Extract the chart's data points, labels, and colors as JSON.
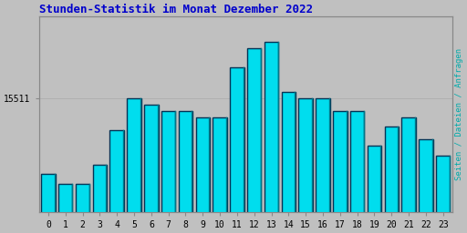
{
  "title": "Stunden-Statistik im Monat Dezember 2022",
  "ylabel_right": "Seiten / Dateien / Anfragen",
  "ytick_label": "15511",
  "hours": [
    0,
    1,
    2,
    3,
    4,
    5,
    6,
    7,
    8,
    9,
    10,
    11,
    12,
    13,
    14,
    15,
    16,
    17,
    18,
    19,
    20,
    21,
    22,
    23
  ],
  "values": [
    15390,
    15375,
    15375,
    15405,
    15460,
    15511,
    15500,
    15490,
    15490,
    15480,
    15480,
    15560,
    15590,
    15600,
    15520,
    15510,
    15510,
    15490,
    15490,
    15435,
    15465,
    15480,
    15445,
    15420
  ],
  "bar_color": "#00DDEE",
  "bar_edge_dark": "#003355",
  "bar_edge_right": "#007788",
  "background_color": "#C0C0C0",
  "plot_bg_color": "#C0C0C0",
  "title_color": "#0000CC",
  "ylabel_color": "#00AAAA",
  "ytick_value": 15511,
  "ymin": 15330,
  "ymax": 15640,
  "grid_color": "#AAAAAA"
}
